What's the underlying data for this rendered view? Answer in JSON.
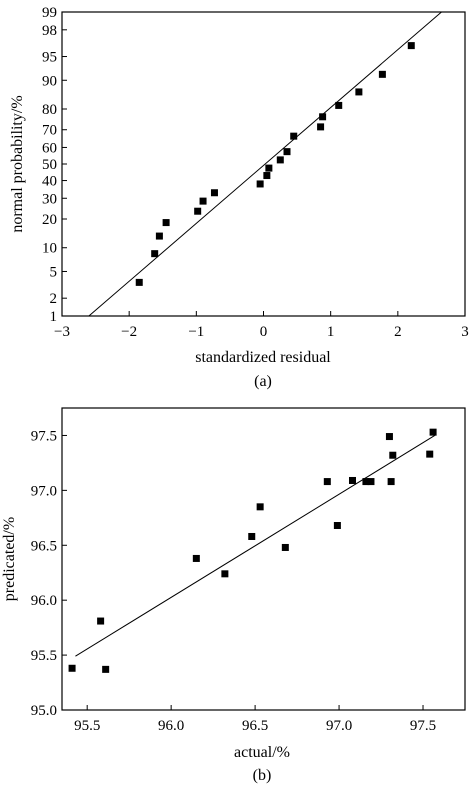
{
  "chart_data": [
    {
      "type": "scatter",
      "caption": "(a)",
      "xlabel": "standardized residual",
      "ylabel": "normal probability/%",
      "xlim": [
        -3,
        3
      ],
      "ylim": [
        1,
        99
      ],
      "yscale": "normal-probability",
      "xticks": [
        -3,
        -2,
        -1,
        0,
        1,
        2,
        3
      ],
      "xtick_labels": [
        "−3",
        "−2",
        "−1",
        "0",
        "1",
        "2",
        "3"
      ],
      "yticks": [
        1,
        2,
        5,
        10,
        20,
        30,
        40,
        50,
        60,
        70,
        80,
        90,
        95,
        98,
        99
      ],
      "ytick_labels": [
        "1",
        "2",
        "5",
        "10",
        "20",
        "30",
        "40",
        "50",
        "60",
        "70",
        "80",
        "90",
        "95",
        "98",
        "99"
      ],
      "grid": false,
      "points": [
        {
          "x": -1.85,
          "y": 3.5
        },
        {
          "x": -1.62,
          "y": 8.5
        },
        {
          "x": -1.55,
          "y": 13.5
        },
        {
          "x": -1.45,
          "y": 18.5
        },
        {
          "x": -0.98,
          "y": 23.5
        },
        {
          "x": -0.9,
          "y": 28.5
        },
        {
          "x": -0.73,
          "y": 33
        },
        {
          "x": -0.05,
          "y": 38
        },
        {
          "x": 0.05,
          "y": 43
        },
        {
          "x": 0.08,
          "y": 47.5
        },
        {
          "x": 0.25,
          "y": 52.5
        },
        {
          "x": 0.35,
          "y": 57.5
        },
        {
          "x": 0.45,
          "y": 66.5
        },
        {
          "x": 0.85,
          "y": 71.5
        },
        {
          "x": 0.88,
          "y": 76.5
        },
        {
          "x": 1.12,
          "y": 81.5
        },
        {
          "x": 1.42,
          "y": 86.5
        },
        {
          "x": 1.77,
          "y": 91.5
        },
        {
          "x": 2.2,
          "y": 96.5
        }
      ],
      "fit_line": [
        {
          "x": -2.6,
          "y": 1
        },
        {
          "x": 2.65,
          "y": 99
        }
      ]
    },
    {
      "type": "scatter",
      "caption": "(b)",
      "xlabel": "actual/%",
      "ylabel": "predicated/%",
      "xlim": [
        95.35,
        97.75
      ],
      "ylim": [
        95.0,
        97.75
      ],
      "xticks": [
        95.5,
        96.0,
        96.5,
        97.0,
        97.5
      ],
      "xtick_labels": [
        "95.5",
        "96.0",
        "96.5",
        "97.0",
        "97.5"
      ],
      "yticks": [
        95.0,
        95.5,
        96.0,
        96.5,
        97.0,
        97.5
      ],
      "ytick_labels": [
        "95.0",
        "95.5",
        "96.0",
        "96.5",
        "97.0",
        "97.5"
      ],
      "grid": false,
      "points": [
        {
          "x": 95.41,
          "y": 95.38
        },
        {
          "x": 95.58,
          "y": 95.81
        },
        {
          "x": 95.61,
          "y": 95.37
        },
        {
          "x": 96.15,
          "y": 96.38
        },
        {
          "x": 96.32,
          "y": 96.24
        },
        {
          "x": 96.48,
          "y": 96.58
        },
        {
          "x": 96.53,
          "y": 96.85
        },
        {
          "x": 96.68,
          "y": 96.48
        },
        {
          "x": 96.93,
          "y": 97.08
        },
        {
          "x": 96.99,
          "y": 96.68
        },
        {
          "x": 97.08,
          "y": 97.09
        },
        {
          "x": 97.16,
          "y": 97.08
        },
        {
          "x": 97.19,
          "y": 97.08
        },
        {
          "x": 97.3,
          "y": 97.49
        },
        {
          "x": 97.31,
          "y": 97.08
        },
        {
          "x": 97.32,
          "y": 97.32
        },
        {
          "x": 97.54,
          "y": 97.33
        },
        {
          "x": 97.56,
          "y": 97.53
        }
      ],
      "fit_line": [
        {
          "x": 95.43,
          "y": 95.49
        },
        {
          "x": 97.57,
          "y": 97.5
        }
      ]
    }
  ]
}
